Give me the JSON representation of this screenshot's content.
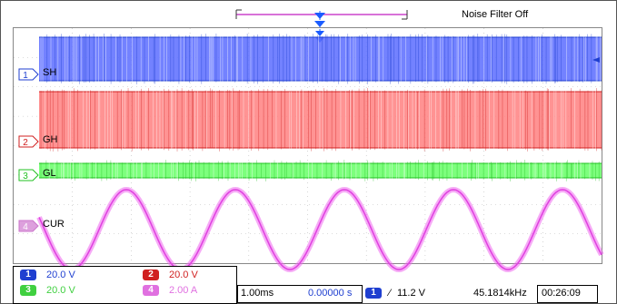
{
  "header": {
    "noise_filter": "Noise Filter Off"
  },
  "channels": [
    {
      "id": "1",
      "name": "SH",
      "color": "#1f3fd0",
      "fill": "#5a6cff",
      "scale": "20.0 V"
    },
    {
      "id": "2",
      "name": "GH",
      "color": "#d02020",
      "fill": "#ff8080",
      "scale": "20.0 V"
    },
    {
      "id": "3",
      "name": "GL",
      "color": "#20c020",
      "fill": "#66ff66",
      "scale": "20.0 V"
    },
    {
      "id": "4",
      "name": "CUR",
      "color": "#e040e0",
      "fill": "#ee66ee",
      "scale": "2.00 A"
    }
  ],
  "timebase": {
    "scale": "1.00ms",
    "position": "0.00000 s"
  },
  "trigger": {
    "source": "1",
    "level": "11.2 V"
  },
  "frequency": "45.1814kHz",
  "clock": "00:26:09"
}
